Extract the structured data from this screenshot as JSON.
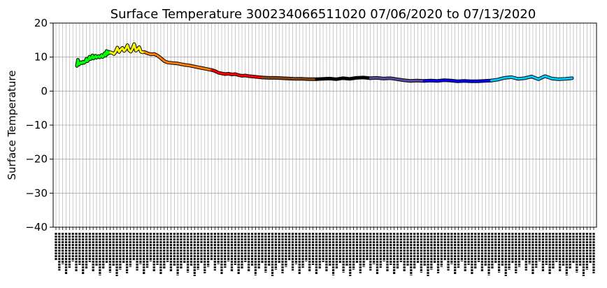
{
  "chart_data": {
    "type": "line",
    "title": "Surface Temperature 300234066511020  07/06/2020 to 07/13/2020",
    "xlabel": "",
    "ylabel": "Surface Temperature",
    "ylim": [
      -40,
      20
    ],
    "yticks": [
      20,
      10,
      0,
      -10,
      -20,
      -30,
      -40
    ],
    "grid": true,
    "legend": "none",
    "x_tick_labels_note": "dense rotated date-time tick labels (illegible)",
    "x_tick_count": 160,
    "segments": [
      {
        "color": "#00ff00",
        "x": [
          0,
          0.03,
          0.06,
          0.09,
          0.12,
          0.15,
          0.18,
          0.21,
          0.25,
          0.28,
          0.31,
          0.34,
          0.37,
          0.4,
          0.43,
          0.46,
          0.49,
          0.52,
          0.55,
          0.58,
          0.61,
          0.64,
          0.67,
          0.7,
          0.73,
          0.76,
          0.79,
          0.82,
          0.85,
          0.88,
          0.91,
          0.94,
          0.97,
          1.0
        ],
        "y": [
          7.4,
          9.2,
          7.8,
          8.2,
          8.5,
          8.2,
          8.6,
          8.3,
          8.7,
          9.5,
          8.8,
          9.2,
          10.1,
          9.4,
          9.8,
          10.5,
          9.6,
          9.9,
          10.4,
          9.8,
          10.1,
          10.3,
          9.9,
          10.2,
          10.6,
          10.0,
          10.3,
          11.1,
          10.4,
          11.8,
          10.9,
          11.6,
          11.2,
          11.4
        ]
      },
      {
        "color": "#ffff00",
        "x": [
          1.0,
          1.05,
          1.1,
          1.15,
          1.2,
          1.25,
          1.3,
          1.35,
          1.4,
          1.45,
          1.5,
          1.55,
          1.6,
          1.65,
          1.7,
          1.75,
          1.8,
          1.85,
          1.9,
          1.95,
          2.0
        ],
        "y": [
          11.4,
          11.2,
          10.9,
          11.6,
          12.8,
          11.5,
          12.2,
          12.7,
          11.8,
          12.4,
          13.5,
          12.0,
          11.6,
          12.5,
          13.8,
          11.9,
          12.3,
          12.9,
          11.6,
          11.4,
          11.5
        ]
      },
      {
        "color": "#ff8000",
        "x": [
          2.0,
          2.1,
          2.2,
          2.3,
          2.4,
          2.5,
          2.6,
          2.7,
          2.8,
          2.9,
          3.0,
          3.1,
          3.2,
          3.3,
          3.4,
          3.5,
          3.6,
          3.7,
          3.8,
          3.9,
          4.0
        ],
        "y": [
          11.5,
          11.1,
          10.8,
          10.9,
          10.4,
          9.6,
          8.8,
          8.4,
          8.3,
          8.2,
          8.1,
          7.9,
          7.7,
          7.6,
          7.4,
          7.2,
          7.0,
          6.8,
          6.6,
          6.4,
          6.2
        ]
      },
      {
        "color": "#ff0000",
        "x": [
          4.0,
          4.1,
          4.2,
          4.3,
          4.4,
          4.5,
          4.6,
          4.7,
          4.8,
          4.9,
          5.0,
          5.1,
          5.2,
          5.3,
          5.4,
          5.5
        ],
        "y": [
          6.2,
          5.9,
          5.4,
          5.2,
          5.0,
          5.1,
          4.9,
          5.0,
          4.7,
          4.5,
          4.6,
          4.4,
          4.3,
          4.2,
          4.1,
          4.0
        ]
      },
      {
        "color": "#8b4513",
        "x": [
          5.5,
          5.7,
          5.9,
          6.1,
          6.3,
          6.5,
          6.7,
          6.9,
          7.1
        ],
        "y": [
          4.0,
          3.9,
          3.9,
          3.8,
          3.7,
          3.6,
          3.6,
          3.5,
          3.5
        ]
      },
      {
        "color": "#000000",
        "x": [
          7.1,
          7.3,
          7.5,
          7.7,
          7.9,
          8.1,
          8.3,
          8.5,
          8.7
        ],
        "y": [
          3.5,
          3.6,
          3.7,
          3.5,
          3.8,
          3.6,
          3.9,
          4.0,
          3.8
        ]
      },
      {
        "color": "#5b4a9e",
        "x": [
          8.7,
          8.9,
          9.1,
          9.3,
          9.5,
          9.7,
          9.9,
          10.1,
          10.3
        ],
        "y": [
          3.8,
          3.9,
          3.7,
          3.8,
          3.5,
          3.2,
          3.0,
          3.1,
          3.0
        ]
      },
      {
        "color": "#0000ff",
        "x": [
          10.3,
          10.5,
          10.7,
          10.9,
          11.1,
          11.3,
          11.5,
          11.7,
          11.9,
          12.1,
          12.3
        ],
        "y": [
          3.0,
          3.1,
          3.0,
          3.2,
          3.1,
          2.9,
          3.0,
          2.9,
          2.9,
          3.0,
          3.1
        ]
      },
      {
        "color": "#00ccff",
        "x": [
          12.3,
          12.5,
          12.7,
          12.9,
          13.1,
          13.3,
          13.5,
          13.7,
          13.9,
          14.1,
          14.3,
          14.5,
          14.7
        ],
        "y": [
          3.1,
          3.4,
          3.9,
          4.1,
          3.6,
          3.8,
          4.3,
          3.5,
          4.4,
          3.7,
          3.5,
          3.6,
          3.8
        ]
      }
    ]
  }
}
